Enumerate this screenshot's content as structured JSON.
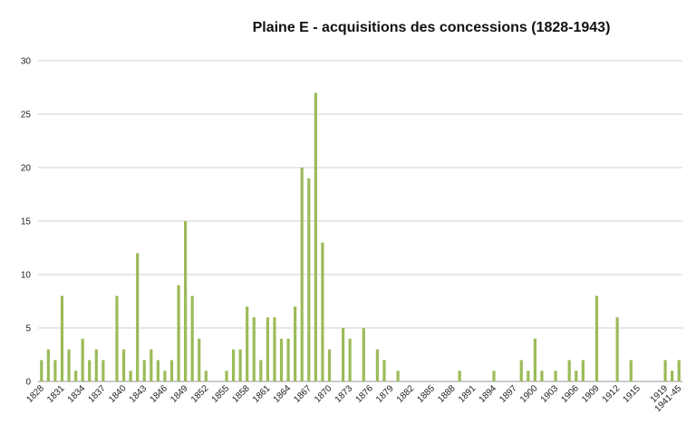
{
  "chart_data": {
    "type": "bar",
    "title": "Plaine E - acquisitions des concessions (1828-1943)",
    "categories": [
      "1828",
      null,
      null,
      "1831",
      null,
      null,
      "1834",
      null,
      null,
      "1837",
      null,
      null,
      "1840",
      null,
      null,
      "1843",
      null,
      null,
      "1846",
      null,
      null,
      "1849",
      null,
      null,
      "1852",
      null,
      null,
      "1855",
      null,
      null,
      "1858",
      null,
      null,
      "1861",
      null,
      null,
      "1864",
      null,
      null,
      "1867",
      null,
      null,
      "1870",
      null,
      null,
      "1873",
      null,
      null,
      "1876",
      null,
      null,
      "1879",
      null,
      null,
      "1882",
      null,
      null,
      "1885",
      null,
      null,
      "1888",
      null,
      null,
      "1891",
      null,
      null,
      "1894",
      null,
      null,
      "1897",
      null,
      null,
      "1900",
      null,
      null,
      "1903",
      null,
      null,
      "1906",
      null,
      null,
      "1909",
      null,
      null,
      "1912",
      null,
      null,
      "1915",
      null,
      null,
      null,
      "1919",
      null,
      "1941-45"
    ],
    "values": [
      2,
      3,
      2,
      8,
      3,
      1,
      4,
      2,
      3,
      2,
      0,
      8,
      3,
      1,
      12,
      2,
      3,
      2,
      1,
      2,
      9,
      15,
      8,
      4,
      1,
      0,
      0,
      1,
      3,
      3,
      7,
      6,
      2,
      6,
      6,
      4,
      4,
      7,
      20,
      19,
      27,
      13,
      3,
      0,
      5,
      4,
      0,
      5,
      0,
      3,
      2,
      0,
      1,
      0,
      0,
      0,
      0,
      0,
      0,
      0,
      0,
      1,
      0,
      0,
      0,
      0,
      1,
      0,
      0,
      0,
      2,
      1,
      4,
      1,
      0,
      1,
      0,
      2,
      1,
      2,
      0,
      8,
      0,
      0,
      6,
      0,
      2,
      0,
      0,
      0,
      0,
      2,
      1,
      2
    ],
    "color": "#9bbb59",
    "ylim": [
      0,
      30
    ],
    "yticks": [
      0,
      5,
      10,
      15,
      20,
      25,
      30
    ],
    "grid": true
  }
}
